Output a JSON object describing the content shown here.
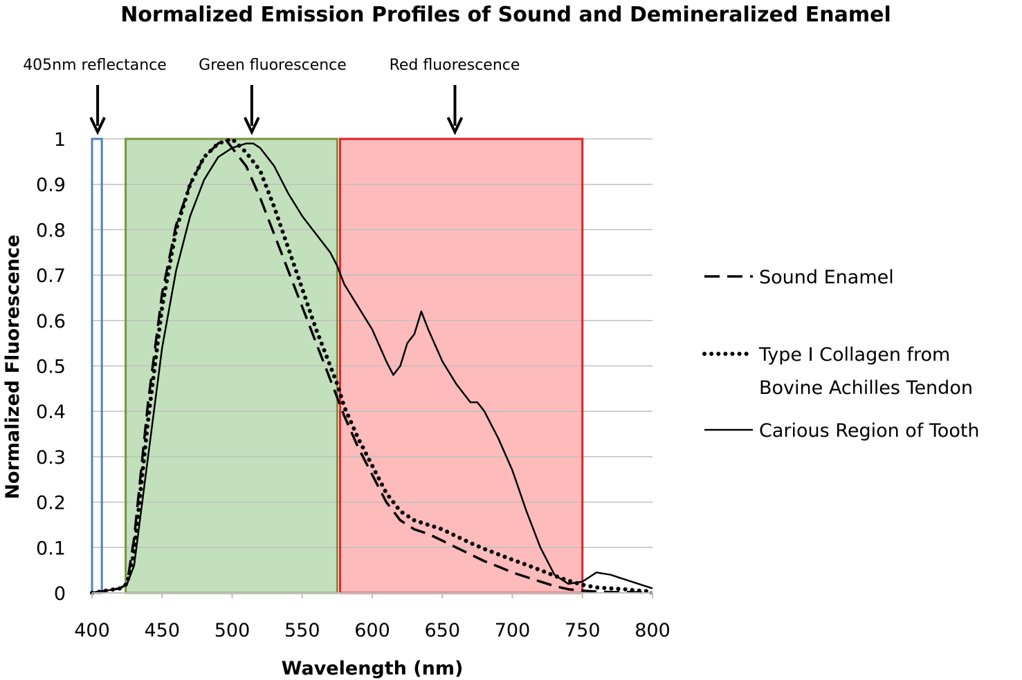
{
  "chart_data": {
    "type": "line",
    "title": "Normalized Emission Profiles of Sound and Demineralized Enamel",
    "xlabel": "Wavelength (nm)",
    "ylabel": "Normalized Fluorescence",
    "xlim": [
      400,
      800
    ],
    "ylim": [
      0,
      1
    ],
    "x_ticks": [
      "400",
      "450",
      "500",
      "550",
      "600",
      "650",
      "700",
      "750",
      "800"
    ],
    "y_ticks": [
      "0",
      "0.1",
      "0.2",
      "0.3",
      "0.4",
      "0.5",
      "0.6",
      "0.7",
      "0.8",
      "0.9",
      "1"
    ],
    "grid": "horizontal",
    "bands": [
      {
        "name": "405nm reflectance",
        "x_range": [
          400,
          407
        ],
        "fill": "#ffffff",
        "stroke": "#4f81bd",
        "y_top": 1.0
      },
      {
        "name": "Green fluorescence",
        "x_range": [
          424,
          575
        ],
        "fill": "#c3e0bd",
        "stroke": "#77933c",
        "y_top": 1.0
      },
      {
        "name": "Red fluorescence",
        "x_range": [
          577,
          750
        ],
        "fill": "#fdbbbb",
        "stroke": "#e0202a",
        "y_top": 1.0
      }
    ],
    "annotations": [
      {
        "text": "405nm reflectance",
        "arrow_x": 404
      },
      {
        "text": "Green fluorescence",
        "arrow_x": 514
      },
      {
        "text": "Red fluorescence",
        "arrow_x": 659
      }
    ],
    "legend_position": "right",
    "series": [
      {
        "name": "Sound Enamel",
        "style": "dashed",
        "x": [
          400,
          410,
          420,
          425,
          430,
          440,
          450,
          460,
          470,
          480,
          490,
          495,
          500,
          505,
          510,
          520,
          530,
          540,
          550,
          560,
          570,
          575,
          580,
          590,
          600,
          610,
          620,
          630,
          640,
          650,
          660,
          670,
          680,
          690,
          700,
          710,
          720,
          730,
          740,
          750,
          760,
          770,
          780,
          790,
          800
        ],
        "values": [
          0.0,
          0.005,
          0.01,
          0.02,
          0.12,
          0.42,
          0.66,
          0.81,
          0.9,
          0.96,
          0.99,
          1.0,
          0.98,
          0.96,
          0.94,
          0.87,
          0.79,
          0.71,
          0.63,
          0.55,
          0.47,
          0.43,
          0.39,
          0.32,
          0.26,
          0.2,
          0.16,
          0.14,
          0.13,
          0.115,
          0.1,
          0.085,
          0.07,
          0.058,
          0.045,
          0.035,
          0.025,
          0.015,
          0.008,
          0.005,
          0.003,
          0.002,
          0.002,
          0.001,
          0.0
        ]
      },
      {
        "name": "Type I Collagen from Bovine Achilles Tendon",
        "style": "dotted",
        "x": [
          400,
          410,
          420,
          425,
          430,
          440,
          450,
          460,
          470,
          480,
          490,
          500,
          510,
          520,
          530,
          540,
          550,
          560,
          570,
          575,
          580,
          590,
          600,
          610,
          620,
          630,
          640,
          650,
          660,
          670,
          680,
          690,
          700,
          710,
          720,
          730,
          740,
          750,
          760,
          770,
          780,
          790,
          800
        ],
        "values": [
          0.0,
          0.005,
          0.01,
          0.02,
          0.09,
          0.38,
          0.63,
          0.8,
          0.9,
          0.96,
          0.99,
          1.0,
          0.97,
          0.93,
          0.85,
          0.76,
          0.67,
          0.58,
          0.5,
          0.46,
          0.41,
          0.34,
          0.28,
          0.22,
          0.18,
          0.16,
          0.15,
          0.14,
          0.125,
          0.11,
          0.097,
          0.085,
          0.073,
          0.062,
          0.05,
          0.038,
          0.027,
          0.018,
          0.012,
          0.01,
          0.008,
          0.005,
          0.003
        ]
      },
      {
        "name": "Carious Region of Tooth",
        "style": "solid",
        "x": [
          400,
          410,
          420,
          425,
          430,
          440,
          450,
          460,
          470,
          480,
          490,
          500,
          510,
          515,
          520,
          530,
          540,
          550,
          560,
          570,
          575,
          580,
          590,
          600,
          610,
          615,
          620,
          625,
          630,
          635,
          640,
          650,
          660,
          670,
          675,
          680,
          690,
          700,
          710,
          720,
          730,
          740,
          750,
          755,
          760,
          770,
          780,
          790,
          800
        ],
        "values": [
          0.0,
          0.005,
          0.01,
          0.02,
          0.06,
          0.3,
          0.54,
          0.71,
          0.83,
          0.91,
          0.96,
          0.98,
          0.99,
          0.99,
          0.98,
          0.94,
          0.88,
          0.83,
          0.79,
          0.75,
          0.72,
          0.68,
          0.63,
          0.58,
          0.51,
          0.48,
          0.5,
          0.55,
          0.57,
          0.62,
          0.58,
          0.51,
          0.46,
          0.42,
          0.42,
          0.4,
          0.34,
          0.27,
          0.18,
          0.1,
          0.04,
          0.02,
          0.025,
          0.035,
          0.045,
          0.04,
          0.03,
          0.02,
          0.01
        ]
      }
    ]
  }
}
